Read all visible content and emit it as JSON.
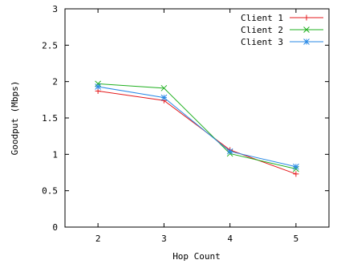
{
  "chart_data": {
    "type": "line",
    "xlabel": "Hop Count",
    "ylabel": "Goodput (Mbps)",
    "x": [
      2,
      3,
      4,
      5
    ],
    "xlim": [
      1.5,
      5.5
    ],
    "ylim": [
      0,
      3
    ],
    "xticks": [
      "2",
      "3",
      "4",
      "5"
    ],
    "yticks": [
      "0",
      "0.5",
      "1",
      "1.5",
      "2",
      "2.5",
      "3"
    ],
    "grid": false,
    "legend_position": "top-right",
    "series": [
      {
        "name": "Client 1",
        "color": "#e41a1c",
        "marker": "plus",
        "values": [
          1.87,
          1.74,
          1.06,
          0.73
        ]
      },
      {
        "name": "Client 2",
        "color": "#21b021",
        "marker": "cross",
        "values": [
          1.97,
          1.91,
          1.01,
          0.8
        ]
      },
      {
        "name": "Client 3",
        "color": "#2a8ae6",
        "marker": "asterisk",
        "values": [
          1.93,
          1.78,
          1.04,
          0.83
        ]
      }
    ]
  }
}
